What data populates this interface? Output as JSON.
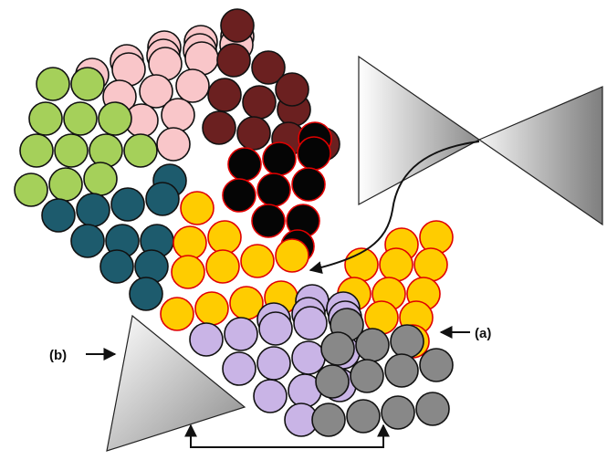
{
  "labels": {
    "a": "(a)",
    "b": "(b)"
  },
  "colors": {
    "pink": "#f9c6c9",
    "dark_red": "#6b2020",
    "green": "#a5d05a",
    "teal": "#1d5b6d",
    "black": "#050505",
    "yellow": "#ffcc00",
    "lavender": "#c9b4e6",
    "gray": "#888888",
    "outline": "#111111",
    "red_outline": "#e00000"
  },
  "icons": [
    "triangle-tip",
    "bowtie-tip",
    "arrow"
  ]
}
